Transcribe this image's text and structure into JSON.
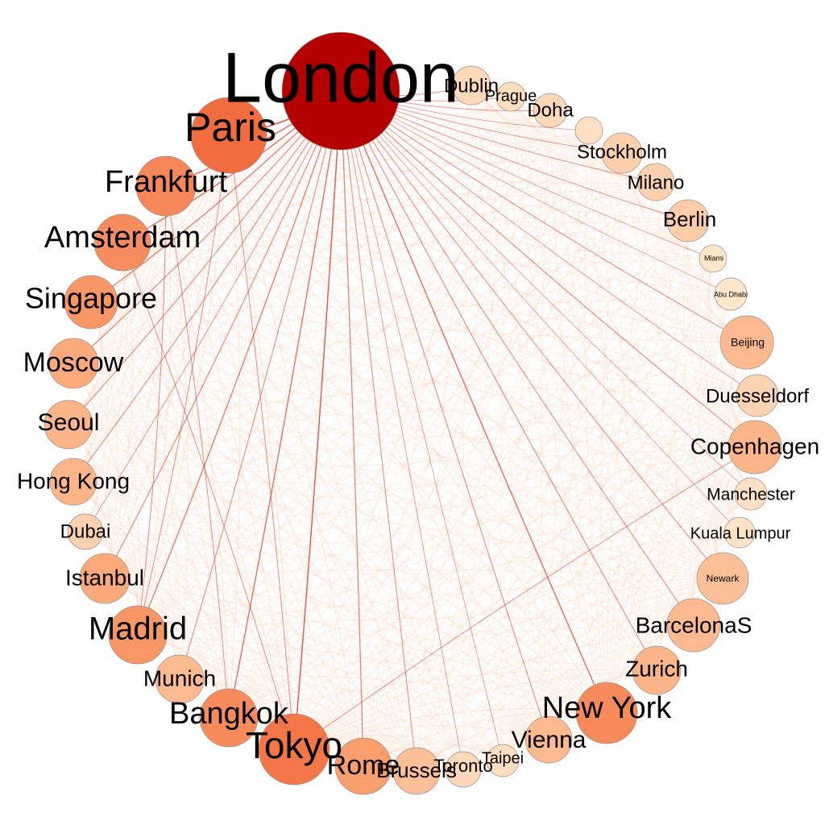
{
  "graph": {
    "nodes": [
      {
        "id": "London",
        "label": "London",
        "weight": 1.0
      },
      {
        "id": "Dublin",
        "label": "Dublin",
        "weight": 0.1
      },
      {
        "id": "Prague",
        "label": "Prague",
        "weight": 0.08
      },
      {
        "id": "Doha",
        "label": "Doha",
        "weight": 0.1
      },
      {
        "id": "unlabeled",
        "label": "",
        "weight": 0.07
      },
      {
        "id": "Stockholm",
        "label": "Stockholm",
        "weight": 0.14
      },
      {
        "id": "Milano",
        "label": "Milano",
        "weight": 0.13
      },
      {
        "id": "Berlin",
        "label": "Berlin",
        "weight": 0.15
      },
      {
        "id": "Miami",
        "label": "Miami",
        "weight": 0.05
      },
      {
        "id": "Abu Dhabi",
        "label": "Abu Dhabi",
        "weight": 0.05
      },
      {
        "id": "Beijing",
        "label": "Beijing",
        "weight": 0.22
      },
      {
        "id": "Duesseldorf",
        "label": "Duesseldorf",
        "weight": 0.12
      },
      {
        "id": "Copenhagen",
        "label": "Copenhagen",
        "weight": 0.24
      },
      {
        "id": "Manchester",
        "label": "Manchester",
        "weight": 0.07
      },
      {
        "id": "Kuala Lumpur",
        "label": "Kuala Lumpur",
        "weight": 0.06
      },
      {
        "id": "Newark",
        "label": "Newark",
        "weight": 0.2
      },
      {
        "id": "BarcelonaS",
        "label": "BarcelonaS",
        "weight": 0.22
      },
      {
        "id": "Zurich",
        "label": "Zurich",
        "weight": 0.24
      },
      {
        "id": "New York",
        "label": "New York",
        "weight": 0.48
      },
      {
        "id": "Vienna",
        "label": "Vienna",
        "weight": 0.22
      },
      {
        "id": "Taipei",
        "label": "Taipei",
        "weight": 0.08
      },
      {
        "id": "Toronto",
        "label": "Toronto",
        "weight": 0.1
      },
      {
        "id": "Brussels",
        "label": "Brussels",
        "weight": 0.2
      },
      {
        "id": "Rome",
        "label": "Rome",
        "weight": 0.34
      },
      {
        "id": "Tokyo",
        "label": "Tokyo",
        "weight": 0.62
      },
      {
        "id": "Bangkok",
        "label": "Bangkok",
        "weight": 0.47
      },
      {
        "id": "Munich",
        "label": "Munich",
        "weight": 0.22
      },
      {
        "id": "Madrid",
        "label": "Madrid",
        "weight": 0.4
      },
      {
        "id": "Istanbul",
        "label": "Istanbul",
        "weight": 0.28
      },
      {
        "id": "Dubai",
        "label": "Dubai",
        "weight": 0.13
      },
      {
        "id": "Hong Kong",
        "label": "Hong Kong",
        "weight": 0.24
      },
      {
        "id": "Seoul",
        "label": "Seoul",
        "weight": 0.24
      },
      {
        "id": "Moscow",
        "label": "Moscow",
        "weight": 0.28
      },
      {
        "id": "Singapore",
        "label": "Singapore",
        "weight": 0.4
      },
      {
        "id": "Amsterdam",
        "label": "Amsterdam",
        "weight": 0.46
      },
      {
        "id": "Frankfurt",
        "label": "Frankfurt",
        "weight": 0.5
      },
      {
        "id": "Paris",
        "label": "Paris",
        "weight": 0.68
      }
    ],
    "hub": "London",
    "colors": {
      "low": "#fef4dc",
      "mid": "#fca474",
      "high": "#f06a3c",
      "hub": "#b30000",
      "edge_light": "#fdd0b5",
      "edge_dark": "#d7301f"
    }
  }
}
